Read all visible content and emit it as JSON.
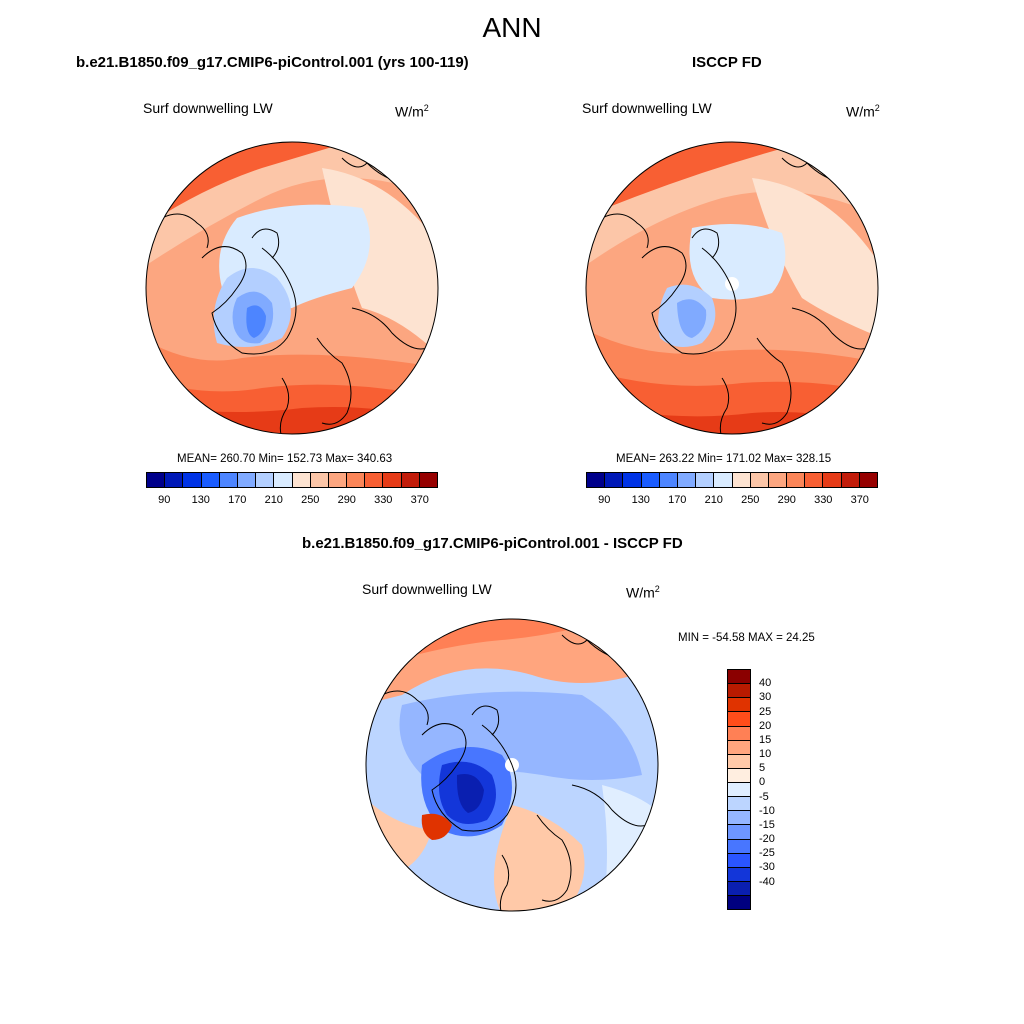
{
  "title": "ANN",
  "panels": [
    {
      "title": "b.e21.B1850.f09_g17.CMIP6-piControl.001 (yrs 100-119)",
      "variable": "Surf downwelling LW",
      "units_base": "W/m",
      "units_exp": "2",
      "stats": "MEAN= 260.70  Min= 152.73  Max= 340.63"
    },
    {
      "title": "ISCCP FD",
      "variable": "Surf downwelling LW",
      "units_base": "W/m",
      "units_exp": "2",
      "stats": "MEAN= 263.22  Min= 171.02  Max= 328.15"
    }
  ],
  "diff_panel": {
    "title": "b.e21.B1850.f09_g17.CMIP6-piControl.001 - ISCCP FD",
    "variable": "Surf downwelling LW",
    "units_base": "W/m",
    "units_exp": "2",
    "stats": "MIN = -54.58 MAX =  24.25"
  },
  "colorbar_top": {
    "colors": [
      "#00008b",
      "#0019b8",
      "#0033e6",
      "#1a5cff",
      "#4d85ff",
      "#80aaff",
      "#b3cfff",
      "#d9ebff",
      "#fde3d1",
      "#fcc6a8",
      "#fca680",
      "#fb8558",
      "#f85f33",
      "#e63b17",
      "#c21c0a",
      "#960000"
    ],
    "tick_labels": [
      "90",
      "130",
      "170",
      "210",
      "250",
      "290",
      "330",
      "370"
    ]
  },
  "colorbar_diff": {
    "colors": [
      "#8b0000",
      "#b81a00",
      "#e03300",
      "#ff4d1a",
      "#ff8055",
      "#ffa57e",
      "#ffc9a8",
      "#ffeee0",
      "#e0eeff",
      "#bcd5ff",
      "#95b6ff",
      "#6e96ff",
      "#4876ff",
      "#2a55ff",
      "#1336d9",
      "#0a1fb0",
      "#000080"
    ],
    "tick_labels": [
      "40",
      "30",
      "25",
      "20",
      "15",
      "10",
      "5",
      "0",
      "-5",
      "-10",
      "-15",
      "-20",
      "-25",
      "-30",
      "-40"
    ]
  }
}
